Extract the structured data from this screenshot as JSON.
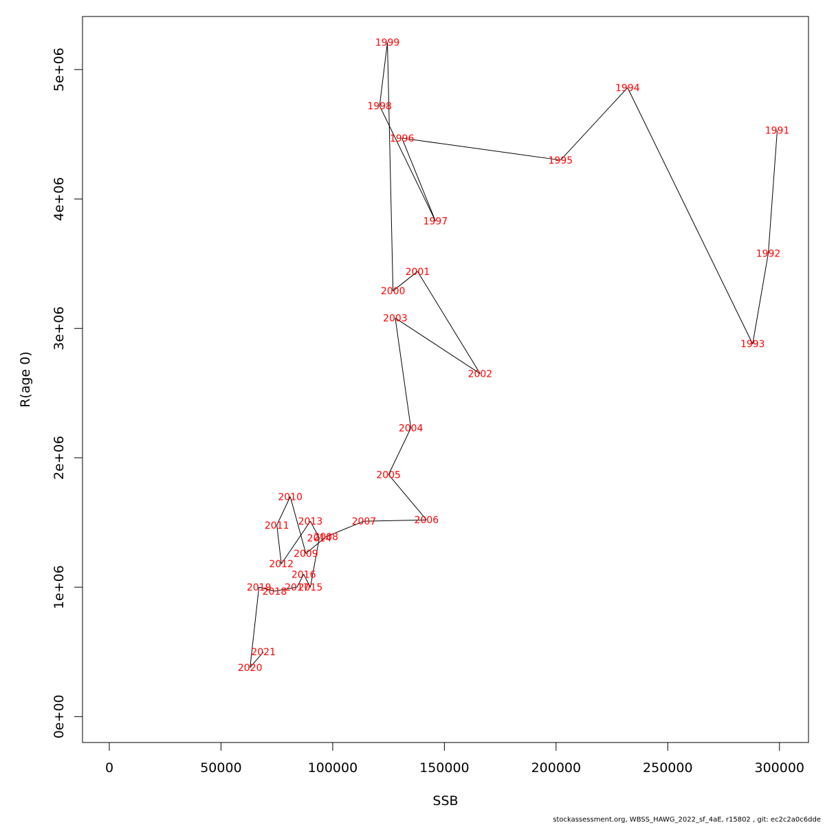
{
  "chart_data": {
    "type": "line",
    "xlabel": "SSB",
    "ylabel": "R(age 0)",
    "xlim": [
      -12000,
      313000
    ],
    "ylim": [
      -200000,
      5410000
    ],
    "x_ticks": [
      {
        "value": 0,
        "label": "0"
      },
      {
        "value": 50000,
        "label": "50000"
      },
      {
        "value": 100000,
        "label": "100000"
      },
      {
        "value": 150000,
        "label": "150000"
      },
      {
        "value": 200000,
        "label": "200000"
      },
      {
        "value": 250000,
        "label": "250000"
      },
      {
        "value": 300000,
        "label": "300000"
      }
    ],
    "y_ticks": [
      {
        "value": 0,
        "label": "0e+00"
      },
      {
        "value": 1000000,
        "label": "1e+06"
      },
      {
        "value": 2000000,
        "label": "2e+06"
      },
      {
        "value": 3000000,
        "label": "3e+06"
      },
      {
        "value": 4000000,
        "label": "4e+06"
      },
      {
        "value": 5000000,
        "label": "5e+06"
      }
    ],
    "point_label_color": "#ff0000",
    "line_color": "#000000",
    "points": [
      {
        "label": "1991",
        "x": 299000,
        "y": 4530000
      },
      {
        "label": "1992",
        "x": 295000,
        "y": 3580000
      },
      {
        "label": "1993",
        "x": 288000,
        "y": 2880000
      },
      {
        "label": "1994",
        "x": 232000,
        "y": 4860000
      },
      {
        "label": "1995",
        "x": 202000,
        "y": 4300000
      },
      {
        "label": "1996",
        "x": 131000,
        "y": 4470000
      },
      {
        "label": "1997",
        "x": 146000,
        "y": 3830000
      },
      {
        "label": "1998",
        "x": 121000,
        "y": 4720000
      },
      {
        "label": "1999",
        "x": 124500,
        "y": 5210000
      },
      {
        "label": "2000",
        "x": 127000,
        "y": 3290000
      },
      {
        "label": "2001",
        "x": 138000,
        "y": 3440000
      },
      {
        "label": "2002",
        "x": 166000,
        "y": 2650000
      },
      {
        "label": "2003",
        "x": 128000,
        "y": 3080000
      },
      {
        "label": "2004",
        "x": 135000,
        "y": 2230000
      },
      {
        "label": "2005",
        "x": 125000,
        "y": 1870000
      },
      {
        "label": "2006",
        "x": 142000,
        "y": 1520000
      },
      {
        "label": "2007",
        "x": 114000,
        "y": 1510000
      },
      {
        "label": "2008",
        "x": 97000,
        "y": 1390000
      },
      {
        "label": "2009",
        "x": 88000,
        "y": 1260000
      },
      {
        "label": "2010",
        "x": 81000,
        "y": 1700000
      },
      {
        "label": "2011",
        "x": 75000,
        "y": 1480000
      },
      {
        "label": "2012",
        "x": 77000,
        "y": 1180000
      },
      {
        "label": "2013",
        "x": 90000,
        "y": 1510000
      },
      {
        "label": "2014",
        "x": 94000,
        "y": 1380000
      },
      {
        "label": "2015",
        "x": 90000,
        "y": 1000000
      },
      {
        "label": "2016",
        "x": 87000,
        "y": 1100000
      },
      {
        "label": "2017",
        "x": 84000,
        "y": 1000000
      },
      {
        "label": "2018",
        "x": 74000,
        "y": 970000
      },
      {
        "label": "2019",
        "x": 67000,
        "y": 1000000
      },
      {
        "label": "2020",
        "x": 63000,
        "y": 380000
      },
      {
        "label": "2021",
        "x": 69000,
        "y": 500000
      }
    ]
  },
  "footer": "stockassessment.org, WBSS_HAWG_2022_sf_4aE, r15802 , git: ec2c2a0c6dde"
}
